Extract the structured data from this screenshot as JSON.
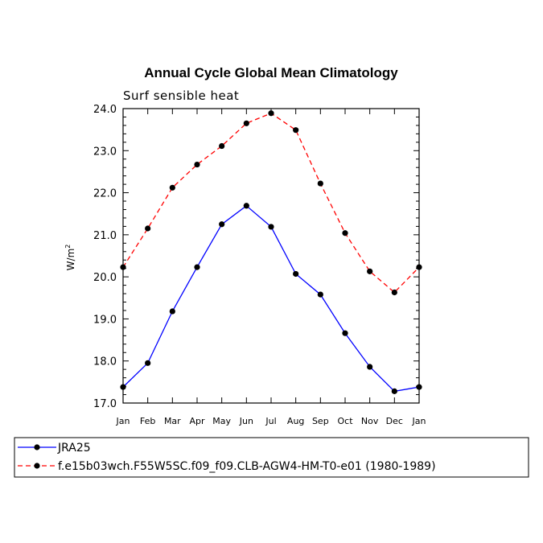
{
  "chart_data": {
    "type": "line",
    "title": "Annual Cycle Global Mean Climatology",
    "subtitle": "Surf sensible heat",
    "ylabel_base": "W/m",
    "ylabel_sup": "2",
    "ylim": [
      17.0,
      24.0
    ],
    "yticks": [
      "17.0",
      "18.0",
      "19.0",
      "20.0",
      "21.0",
      "22.0",
      "23.0",
      "24.0"
    ],
    "categories": [
      "Jan",
      "Feb",
      "Mar",
      "Apr",
      "May",
      "Jun",
      "Jul",
      "Aug",
      "Sep",
      "Oct",
      "Nov",
      "Dec",
      "Jan"
    ],
    "grid": false,
    "legend_position": "bottom",
    "series": [
      {
        "name": "JRA25",
        "color": "#0000ff",
        "dash": "solid",
        "values": [
          17.38,
          17.95,
          19.18,
          20.23,
          21.25,
          21.69,
          21.19,
          20.07,
          19.58,
          18.66,
          17.86,
          17.28,
          17.38
        ]
      },
      {
        "name": "f.e15b03wch.F55W5SC.f09_f09.CLB-AGW4-HM-T0-e01 (1980-1989)",
        "color": "#ff0000",
        "dash": "dashed",
        "values": [
          20.23,
          21.15,
          22.12,
          22.67,
          23.11,
          23.65,
          23.89,
          23.49,
          22.22,
          21.04,
          20.13,
          19.63,
          20.23
        ]
      }
    ]
  }
}
